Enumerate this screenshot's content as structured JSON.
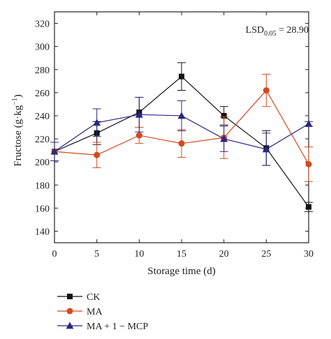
{
  "chart_data": {
    "type": "line",
    "xlabel": "Storage time (d)",
    "ylabel_main": "Fructose (g·kg",
    "ylabel_sup": "−1",
    "ylabel_close": ")",
    "annotation": {
      "base": "LSD",
      "sub": "0.05",
      "rest": " = 28.90"
    },
    "xlim": [
      0,
      30
    ],
    "ylim": [
      130,
      330
    ],
    "x_ticks": [
      0,
      5,
      10,
      15,
      20,
      25,
      30
    ],
    "y_ticks": [
      140,
      160,
      180,
      200,
      220,
      240,
      260,
      280,
      300,
      320
    ],
    "grid": false,
    "legend_position": "below",
    "x": [
      0,
      5,
      10,
      15,
      20,
      25,
      30
    ],
    "series": [
      {
        "name": "CK",
        "color": "#111111",
        "marker": "square",
        "values": [
          209,
          225,
          243,
          274,
          240,
          212,
          161
        ],
        "errors": [
          8,
          10,
          13,
          12,
          8,
          15,
          4
        ]
      },
      {
        "name": "MA",
        "color": "#d4491f",
        "marker": "circle",
        "values": [
          209,
          206,
          223,
          216,
          221,
          262,
          198
        ],
        "errors": [
          8,
          11,
          7,
          12,
          18,
          14,
          15
        ]
      },
      {
        "name": "MA + 1 − MCP",
        "color": "#2b2680",
        "marker": "triangle",
        "values": [
          209,
          234,
          241,
          240,
          220,
          211,
          233
        ],
        "errors": [
          8,
          12,
          15,
          13,
          11,
          14,
          2
        ]
      }
    ]
  }
}
